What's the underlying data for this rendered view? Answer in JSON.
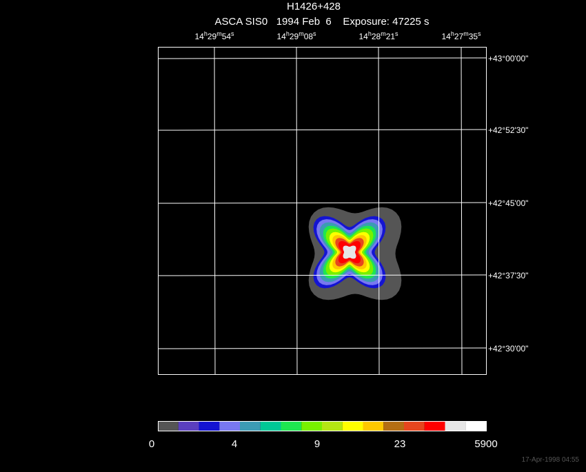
{
  "header": {
    "title": "H1426+428",
    "subtitle": "ASCA SIS0   1994 Feb  6    Exposure: 47225 s"
  },
  "ra_labels": [
    [
      "14",
      "h",
      "29",
      "m",
      "54",
      "s"
    ],
    [
      "14",
      "h",
      "29",
      "m",
      "08",
      "s"
    ],
    [
      "14",
      "h",
      "28",
      "m",
      "21",
      "s"
    ],
    [
      "14",
      "h",
      "27",
      "m",
      "35",
      "s"
    ]
  ],
  "dec_labels": [
    "+43°00'00\"",
    "+42°52'30\"",
    "+42°45'00\"",
    "+42°37'30\"",
    "+42°30'00\""
  ],
  "colorbar": {
    "colors": [
      "#555555",
      "#5a3fbf",
      "#1414d2",
      "#7878f0",
      "#3c9bb4",
      "#00c896",
      "#1ee650",
      "#78f000",
      "#b4e614",
      "#ffff00",
      "#ffc800",
      "#b46e14",
      "#e6461e",
      "#ff0000",
      "#e6e6e6",
      "#ffffff"
    ],
    "ticks": [
      "0",
      "4",
      "9",
      "23",
      "5900"
    ]
  },
  "footer": "17-Apr-1998 04:55"
}
